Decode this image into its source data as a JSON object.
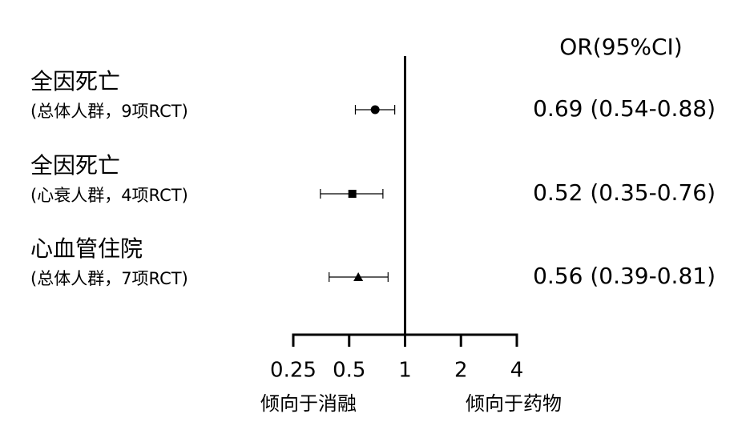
{
  "chart_data": {
    "type": "forest",
    "column_header": "OR(95%CI)",
    "categories": [
      "全因死亡",
      "全因死亡",
      "心血管住院"
    ],
    "sublabels": [
      "(总体人群，9项RCT)",
      "(心衰人群，4项RCT)",
      "(总体人群，7项RCT)"
    ],
    "values": [
      0.69,
      0.52,
      0.56
    ],
    "lower": [
      0.54,
      0.35,
      0.39
    ],
    "upper": [
      0.88,
      0.76,
      0.81
    ],
    "value_labels": [
      "0.69 (0.54-0.88)",
      "0.52 (0.35-0.76)",
      "0.56 (0.39-0.81)"
    ],
    "markers": [
      "circle",
      "square",
      "triangle"
    ],
    "color": "#000000",
    "xscale": "log",
    "xlim": [
      0.25,
      4
    ],
    "xticks": [
      0.25,
      0.5,
      1,
      2,
      4
    ],
    "reference": 1,
    "left_annotation": "倾向于消融",
    "right_annotation": "倾向于药物"
  }
}
